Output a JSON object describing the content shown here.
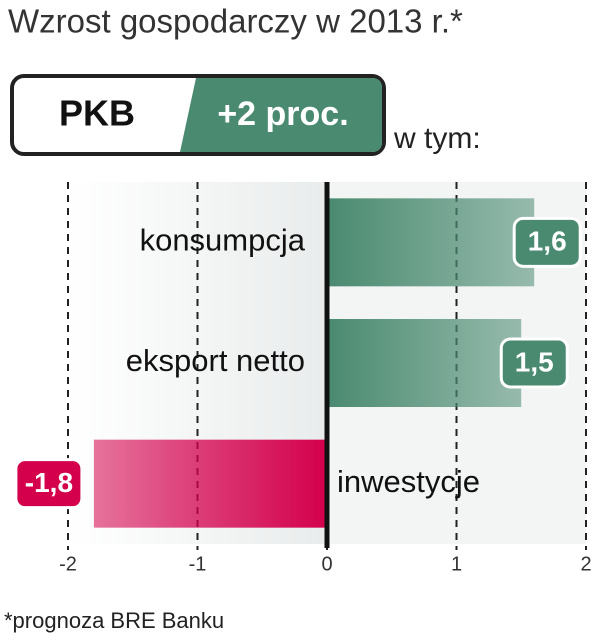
{
  "chart_data": {
    "type": "bar",
    "orientation": "horizontal",
    "title": "Wzrost gospodarczy w 2013 r.*",
    "headline_label": "PKB",
    "headline_value": "+2 proc.",
    "note": "w tym:",
    "categories": [
      "konsumpcja",
      "eksport netto",
      "inwestycje"
    ],
    "values": [
      1.6,
      1.5,
      -1.8
    ],
    "value_labels": [
      "1,6",
      "1,5",
      "-1,8"
    ],
    "colors": [
      "#4a8a70",
      "#4a8a70",
      "#d4004c"
    ],
    "xlim": [
      -2,
      2
    ],
    "xticks": [
      -2,
      -1,
      0,
      1,
      2
    ],
    "grid": true,
    "footnote": "*prognoza BRE Banku"
  }
}
